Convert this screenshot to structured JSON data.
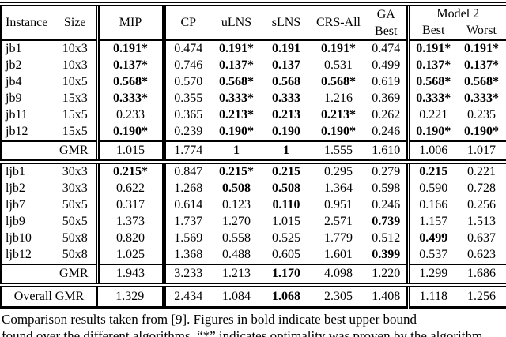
{
  "table": {
    "header": {
      "instance": "Instance",
      "size": "Size",
      "mip": "MIP",
      "cp": "CP",
      "ulns": "uLNS",
      "slns": "sLNS",
      "crs_all": "CRS-All",
      "ga_line1": "GA",
      "ga_line2": "Best",
      "model2": "Model 2",
      "model2_best": "Best",
      "model2_worst": "Worst"
    },
    "sections": [
      {
        "rows": [
          {
            "instance": "jb1",
            "size": "10x3",
            "values": [
              "0.191*",
              "0.474",
              "0.191*",
              "0.191",
              "0.191*",
              "0.474",
              "0.191*",
              "0.191*"
            ],
            "bold": [
              true,
              false,
              true,
              true,
              true,
              false,
              true,
              true
            ]
          },
          {
            "instance": "jb2",
            "size": "10x3",
            "values": [
              "0.137*",
              "0.746",
              "0.137*",
              "0.137",
              "0.531",
              "0.499",
              "0.137*",
              "0.137*"
            ],
            "bold": [
              true,
              false,
              true,
              true,
              false,
              false,
              true,
              true
            ]
          },
          {
            "instance": "jb4",
            "size": "10x5",
            "values": [
              "0.568*",
              "0.570",
              "0.568*",
              "0.568",
              "0.568*",
              "0.619",
              "0.568*",
              "0.568*"
            ],
            "bold": [
              true,
              false,
              true,
              true,
              true,
              false,
              true,
              true
            ]
          },
          {
            "instance": "jb9",
            "size": "15x3",
            "values": [
              "0.333*",
              "0.355",
              "0.333*",
              "0.333",
              "1.216",
              "0.369",
              "0.333*",
              "0.333*"
            ],
            "bold": [
              true,
              false,
              true,
              true,
              false,
              false,
              true,
              true
            ]
          },
          {
            "instance": "jb11",
            "size": "15x5",
            "values": [
              "0.233",
              "0.365",
              "0.213*",
              "0.213",
              "0.213*",
              "0.262",
              "0.221",
              "0.235"
            ],
            "bold": [
              false,
              false,
              true,
              true,
              true,
              false,
              false,
              false
            ]
          },
          {
            "instance": "jb12",
            "size": "15x5",
            "values": [
              "0.190*",
              "0.239",
              "0.190*",
              "0.190",
              "0.190*",
              "0.246",
              "0.190*",
              "0.190*"
            ],
            "bold": [
              true,
              false,
              true,
              true,
              true,
              false,
              true,
              true
            ]
          }
        ],
        "gmr": {
          "label": "GMR",
          "values": [
            "1.015",
            "1.774",
            "1",
            "1",
            "1.555",
            "1.610",
            "1.006",
            "1.017"
          ],
          "bold": [
            false,
            false,
            true,
            true,
            false,
            false,
            false,
            false
          ]
        }
      },
      {
        "rows": [
          {
            "instance": "ljb1",
            "size": "30x3",
            "values": [
              "0.215*",
              "0.847",
              "0.215*",
              "0.215",
              "0.295",
              "0.279",
              "0.215",
              "0.221"
            ],
            "bold": [
              true,
              false,
              true,
              true,
              false,
              false,
              true,
              false
            ]
          },
          {
            "instance": "ljb2",
            "size": "30x3",
            "values": [
              "0.622",
              "1.268",
              "0.508",
              "0.508",
              "1.364",
              "0.598",
              "0.590",
              "0.728"
            ],
            "bold": [
              false,
              false,
              true,
              true,
              false,
              false,
              false,
              false
            ]
          },
          {
            "instance": "ljb7",
            "size": "50x5",
            "values": [
              "0.317",
              "0.614",
              "0.123",
              "0.110",
              "0.951",
              "0.246",
              "0.166",
              "0.256"
            ],
            "bold": [
              false,
              false,
              false,
              true,
              false,
              false,
              false,
              false
            ]
          },
          {
            "instance": "ljb9",
            "size": "50x5",
            "values": [
              "1.373",
              "1.737",
              "1.270",
              "1.015",
              "2.571",
              "0.739",
              "1.157",
              "1.513"
            ],
            "bold": [
              false,
              false,
              false,
              false,
              false,
              true,
              false,
              false
            ]
          },
          {
            "instance": "ljb10",
            "size": "50x8",
            "values": [
              "0.820",
              "1.569",
              "0.558",
              "0.525",
              "1.779",
              "0.512",
              "0.499",
              "0.637"
            ],
            "bold": [
              false,
              false,
              false,
              false,
              false,
              false,
              true,
              false
            ]
          },
          {
            "instance": "ljb12",
            "size": "50x8",
            "values": [
              "1.025",
              "1.368",
              "0.488",
              "0.605",
              "1.601",
              "0.399",
              "0.537",
              "0.623"
            ],
            "bold": [
              false,
              false,
              false,
              false,
              false,
              true,
              false,
              false
            ]
          }
        ],
        "gmr": {
          "label": "GMR",
          "values": [
            "1.943",
            "3.233",
            "1.213",
            "1.170",
            "4.098",
            "1.220",
            "1.299",
            "1.686"
          ],
          "bold": [
            false,
            false,
            false,
            true,
            false,
            false,
            false,
            false
          ]
        }
      }
    ],
    "overall": {
      "label": "Overall GMR",
      "values": [
        "1.329",
        "2.434",
        "1.084",
        "1.068",
        "2.305",
        "1.408",
        "1.118",
        "1.256"
      ],
      "bold": [
        false,
        false,
        false,
        true,
        false,
        false,
        false,
        false
      ]
    }
  },
  "caption": {
    "line1": "Comparison results taken from [9]. Figures in bold indicate best upper bound",
    "line2": "found over the different algorithms. “*” indicates optimality was proven by the algorithm."
  }
}
